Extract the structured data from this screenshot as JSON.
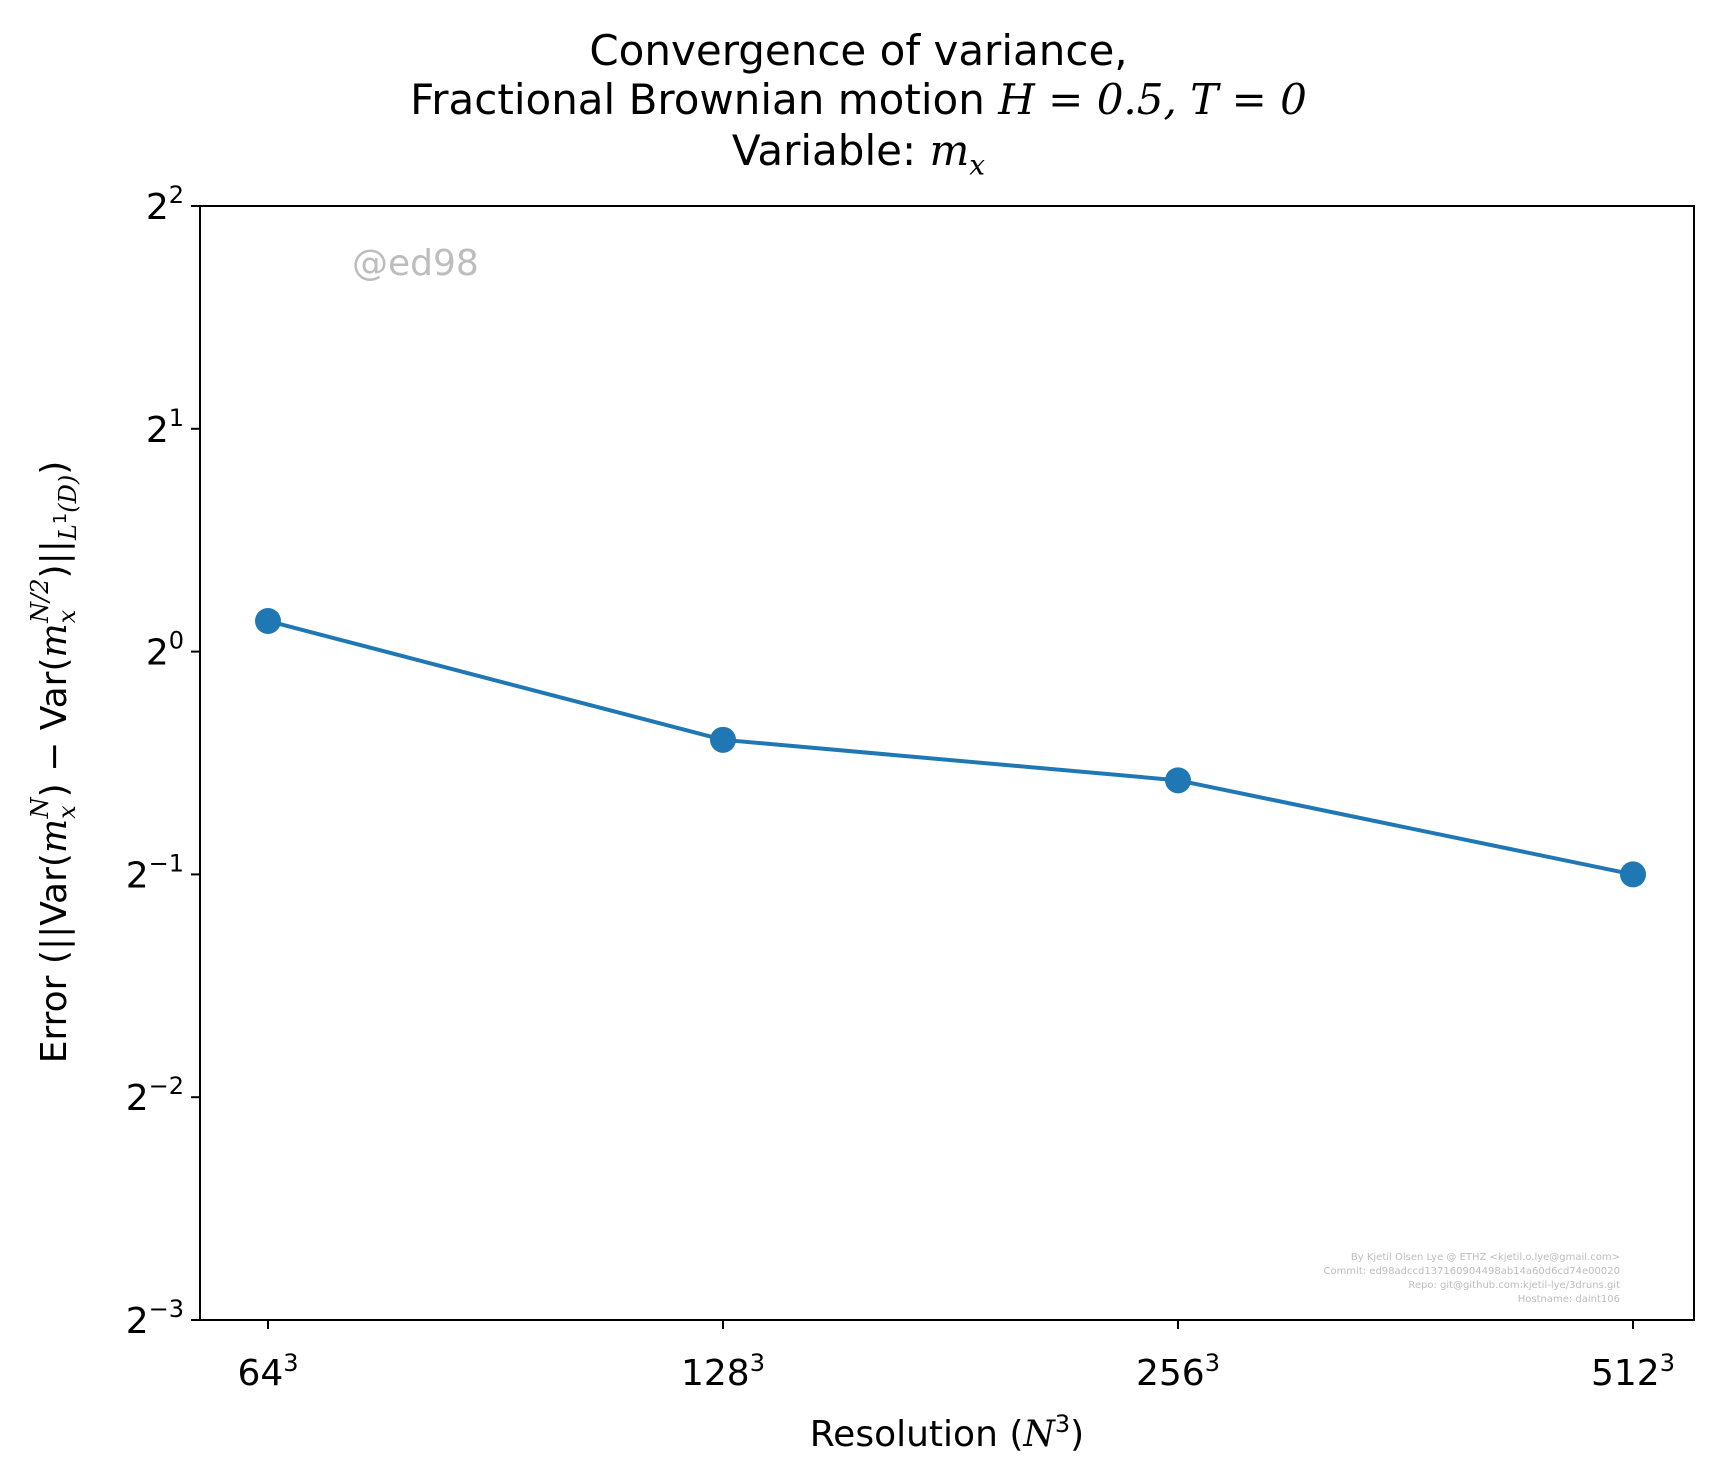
{
  "title": {
    "line1": "Convergence of variance,",
    "line2_prefix": "Fractional Brownian motion ",
    "line2_math": "H = 0.5, T = 0",
    "line3_prefix": "Variable: ",
    "line3_math_base": "m",
    "line3_math_sub": "x"
  },
  "watermark": "@ed98",
  "credits": [
    "By Kjetil Olsen Lye @ ETHZ <kjetil.o.lye@gmail.com>",
    "Commit: ed98adccd137160904498ab14a60d6cd74e00020",
    "Repo: git@github.com:kjetil-lye/3druns.git",
    "Hostname: daint106"
  ],
  "colors": {
    "series": "#1f77b4",
    "watermark": "#bdbdbd"
  },
  "chart_data": {
    "type": "line",
    "x_scale": "log2",
    "y_scale": "log2",
    "xlabel": "Resolution (N^3)",
    "ylabel": "Error (||Var(m_x^N) − Var(m_x^{N/2})||_{L^1(D)})",
    "x_tick_labels": [
      {
        "base": "64",
        "exp": "3"
      },
      {
        "base": "128",
        "exp": "3"
      },
      {
        "base": "256",
        "exp": "3"
      },
      {
        "base": "512",
        "exp": "3"
      }
    ],
    "y_tick_labels": [
      {
        "base": "2",
        "exp": "2"
      },
      {
        "base": "2",
        "exp": "1"
      },
      {
        "base": "2",
        "exp": "0"
      },
      {
        "base": "2",
        "exp": "−1"
      },
      {
        "base": "2",
        "exp": "−2"
      },
      {
        "base": "2",
        "exp": "−3"
      }
    ],
    "ylim_log2": [
      -3,
      2
    ],
    "categories": [
      "64^3",
      "128^3",
      "256^3",
      "512^3"
    ],
    "series": [
      {
        "values": [
          1.1,
          0.76,
          0.67,
          0.5
        ]
      }
    ],
    "grid": false,
    "markers": true
  }
}
